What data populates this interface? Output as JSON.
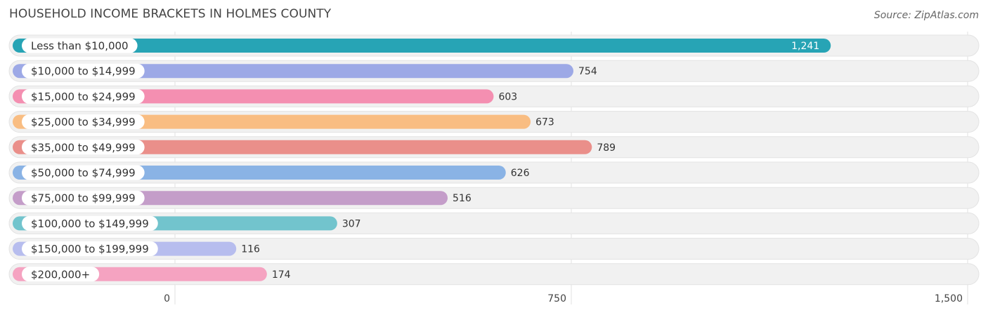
{
  "header": {
    "title": "HOUSEHOLD INCOME BRACKETS IN HOLMES COUNTY",
    "source": "Source: ZipAtlas.com"
  },
  "chart_data": {
    "type": "bar",
    "orientation": "horizontal",
    "title": "HOUSEHOLD INCOME BRACKETS IN HOLMES COUNTY",
    "categories": [
      "Less than $10,000",
      "$10,000 to $14,999",
      "$15,000 to $24,999",
      "$25,000 to $34,999",
      "$35,000 to $49,999",
      "$50,000 to $74,999",
      "$75,000 to $99,999",
      "$100,000 to $149,999",
      "$150,000 to $199,999",
      "$200,000+"
    ],
    "values": [
      1241,
      754,
      603,
      673,
      789,
      626,
      516,
      307,
      116,
      174
    ],
    "value_labels": [
      "1,241",
      "754",
      "603",
      "673",
      "789",
      "626",
      "516",
      "307",
      "116",
      "174"
    ],
    "colors": [
      "#27a4b5",
      "#9da9e6",
      "#f48fb1",
      "#f9bd82",
      "#ea8f8a",
      "#8ab3e5",
      "#c49dc9",
      "#72c4cd",
      "#b7bdee",
      "#f5a3c1"
    ],
    "xlim": [
      0,
      1500
    ],
    "xticks": [
      0,
      750,
      1500
    ],
    "xtick_labels": [
      "0",
      "750",
      "1,500"
    ],
    "grid": true,
    "xlabel": "",
    "ylabel": ""
  }
}
